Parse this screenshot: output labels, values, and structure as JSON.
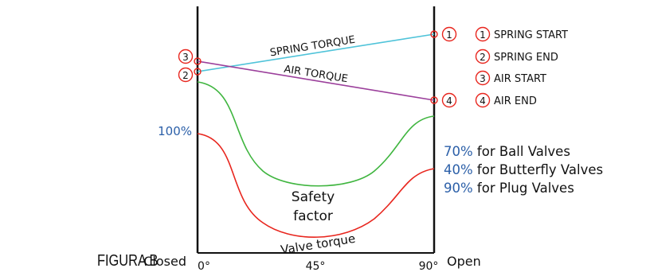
{
  "figure_label": "FIGURA B",
  "x_axis": {
    "left_label": "Closed",
    "right_label": "Open",
    "ticks": [
      "0°",
      "45°",
      "90°"
    ]
  },
  "y_marker": "100%",
  "curves": {
    "spring_torque": "SPRING TORQUE",
    "air_torque": "AIR TORQUE",
    "safety_factor_line1": "Safety",
    "safety_factor_line2": "factor",
    "valve_torque": "Valve torque"
  },
  "points": [
    {
      "num": "1",
      "label": "SPRING START"
    },
    {
      "num": "2",
      "label": "SPRING END"
    },
    {
      "num": "3",
      "label": "AIR START"
    },
    {
      "num": "4",
      "label": "AIR END"
    }
  ],
  "valve_notes": [
    {
      "pct": "70%",
      "text": " for Ball Valves"
    },
    {
      "pct": "40%",
      "text": " for Butterfly Valves"
    },
    {
      "pct": "90%",
      "text": " for Plug Valves"
    }
  ],
  "colors": {
    "spring_torque": "#4fc3d9",
    "air_torque": "#9b3f9b",
    "safety_curve": "#3fb53f",
    "valve_curve": "#e8261e",
    "marker": "#e8261e",
    "percent_text": "#2b5fa8",
    "text": "#111111"
  }
}
